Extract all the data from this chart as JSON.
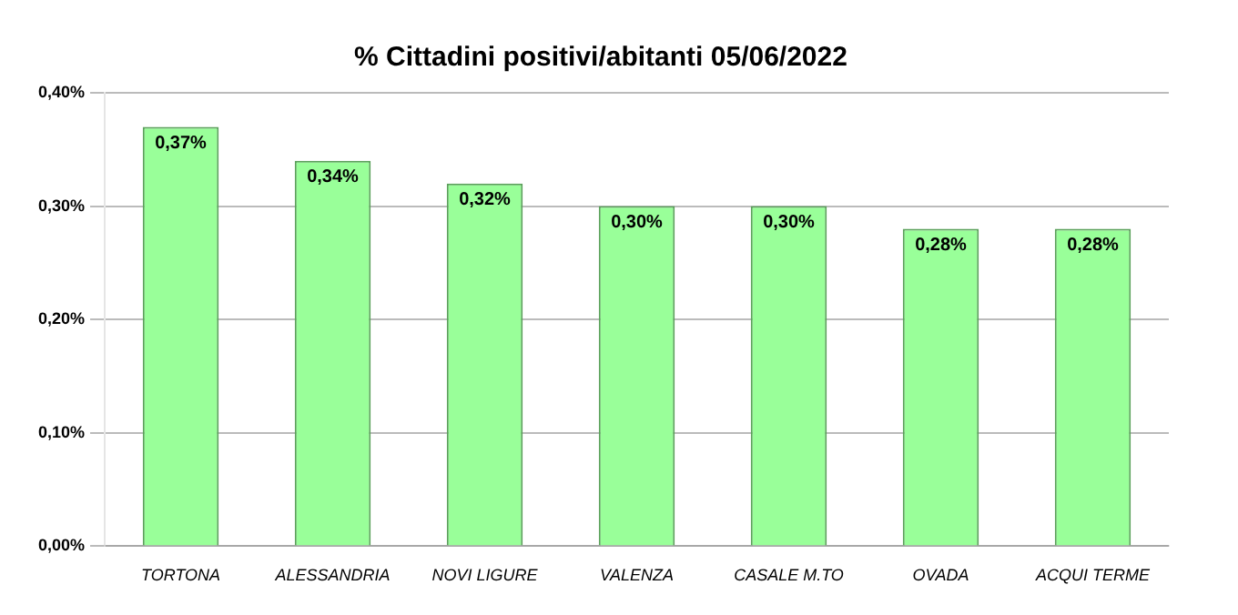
{
  "chart_data": {
    "type": "bar",
    "title": "% Cittadini positivi/abitanti 05/06/2022",
    "categories": [
      "TORTONA",
      "ALESSANDRIA",
      "NOVI LIGURE",
      "VALENZA",
      "CASALE M.TO",
      "OVADA",
      "ACQUI TERME"
    ],
    "values": [
      0.37,
      0.34,
      0.32,
      0.3,
      0.3,
      0.28,
      0.28
    ],
    "value_labels": [
      "0,37%",
      "0,34%",
      "0,32%",
      "0,30%",
      "0,30%",
      "0,28%",
      "0,28%"
    ],
    "color": "#99ff99",
    "ylim": [
      0,
      0.4
    ],
    "yticks": [
      {
        "value": 0,
        "label": "0,00%"
      },
      {
        "value": 0.1,
        "label": "0,10%"
      },
      {
        "value": 0.2,
        "label": "0,20%"
      },
      {
        "value": 0.3,
        "label": "0,30%"
      },
      {
        "value": 0.4,
        "label": "0,40%"
      }
    ],
    "grid": "y"
  }
}
